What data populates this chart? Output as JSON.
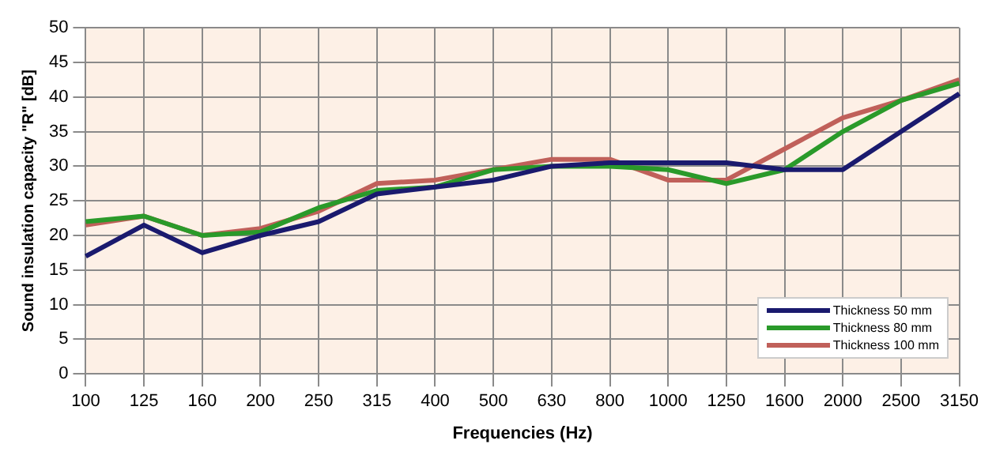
{
  "chart_data": {
    "type": "line",
    "xlabel": "Frequencies (Hz)",
    "ylabel": "Sound insulation capacity \"R\" [dB]",
    "categories": [
      "100",
      "125",
      "160",
      "200",
      "250",
      "315",
      "400",
      "500",
      "630",
      "800",
      "1000",
      "1250",
      "1600",
      "2000",
      "2500",
      "3150"
    ],
    "series": [
      {
        "name": "Thickness 50 mm",
        "color": "#1a1a6e",
        "values": [
          17,
          21.5,
          17.5,
          20,
          22,
          26,
          27,
          28,
          30,
          30.5,
          30.5,
          30.5,
          29.5,
          29.5,
          35,
          40.5
        ]
      },
      {
        "name": "Thickness 80 mm",
        "color": "#2a9a2a",
        "values": [
          22,
          22.8,
          20,
          20.5,
          24,
          26.5,
          27,
          29.5,
          30,
          30,
          29.5,
          27.5,
          29.5,
          35,
          39.5,
          42
        ]
      },
      {
        "name": "Thickness 100 mm",
        "color": "#c0605a",
        "values": [
          21.5,
          22.8,
          20,
          21,
          23.5,
          27.5,
          28,
          29.5,
          31,
          31,
          28,
          28,
          32.5,
          37,
          39.5,
          42.5
        ]
      }
    ],
    "ylim": [
      0,
      50
    ],
    "yticks": [
      0,
      5,
      10,
      15,
      20,
      25,
      30,
      35,
      40,
      45,
      50
    ],
    "grid": true,
    "legend": "bottom right",
    "marker": "none",
    "line_style": "solid"
  }
}
